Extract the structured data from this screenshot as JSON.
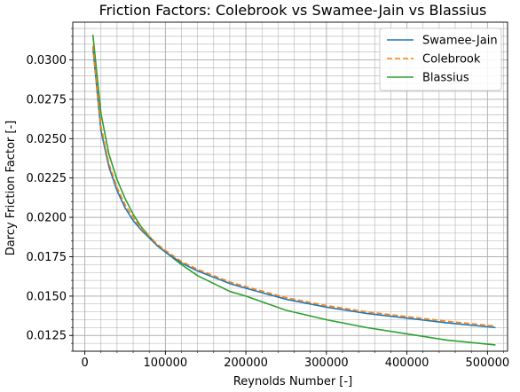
{
  "chart_data": {
    "type": "line",
    "title": "Friction Factors: Colebrook vs Swamee-Jain vs Blassius",
    "xlabel": "Reynolds Number [-]",
    "ylabel": "Darcy Friction Factor [-]",
    "xlim": [
      -15000,
      525000
    ],
    "ylim": [
      0.0115,
      0.0324
    ],
    "grid": true,
    "minor_grid": true,
    "legend_position": "top-right",
    "x_ticks": [
      0,
      100000,
      200000,
      300000,
      400000,
      500000
    ],
    "y_ticks": [
      0.0125,
      0.015,
      0.0175,
      0.02,
      0.0225,
      0.025,
      0.0275,
      0.03
    ],
    "x_tick_labels": [
      "0",
      "100000",
      "200000",
      "300000",
      "400000",
      "500000"
    ],
    "y_tick_labels": [
      "0.0125",
      "0.0150",
      "0.0175",
      "0.0200",
      "0.0225",
      "0.0250",
      "0.0275",
      "0.0300"
    ],
    "x": [
      10000,
      20000,
      30000,
      40000,
      50000,
      60000,
      70000,
      80000,
      90000,
      100000,
      120000,
      140000,
      160000,
      180000,
      200000,
      250000,
      300000,
      350000,
      400000,
      450000,
      510000
    ],
    "series": [
      {
        "name": "Swamee-Jain",
        "color": "#1f77b4",
        "dash": "solid",
        "values": [
          0.0308,
          0.0255,
          0.0232,
          0.0217,
          0.0206,
          0.0198,
          0.0192,
          0.0187,
          0.0182,
          0.0178,
          0.0171,
          0.0166,
          0.0162,
          0.0158,
          0.0155,
          0.0148,
          0.0143,
          0.0139,
          0.0136,
          0.0133,
          0.013
        ]
      },
      {
        "name": "Colebrook",
        "color": "#ff7f0e",
        "dash": "dashed",
        "values": [
          0.0309,
          0.0258,
          0.0234,
          0.0219,
          0.0208,
          0.02,
          0.0193,
          0.0188,
          0.0183,
          0.0179,
          0.0172,
          0.0167,
          0.0163,
          0.0159,
          0.0156,
          0.0149,
          0.0144,
          0.014,
          0.0137,
          0.0134,
          0.0131
        ]
      },
      {
        "name": "Blassius",
        "color": "#2ca02c",
        "dash": "solid",
        "values": [
          0.0316,
          0.0266,
          0.024,
          0.0224,
          0.0212,
          0.0202,
          0.0194,
          0.0188,
          0.0182,
          0.0178,
          0.017,
          0.0163,
          0.0158,
          0.0153,
          0.015,
          0.0141,
          0.0135,
          0.013,
          0.0126,
          0.0122,
          0.0119
        ]
      }
    ]
  }
}
